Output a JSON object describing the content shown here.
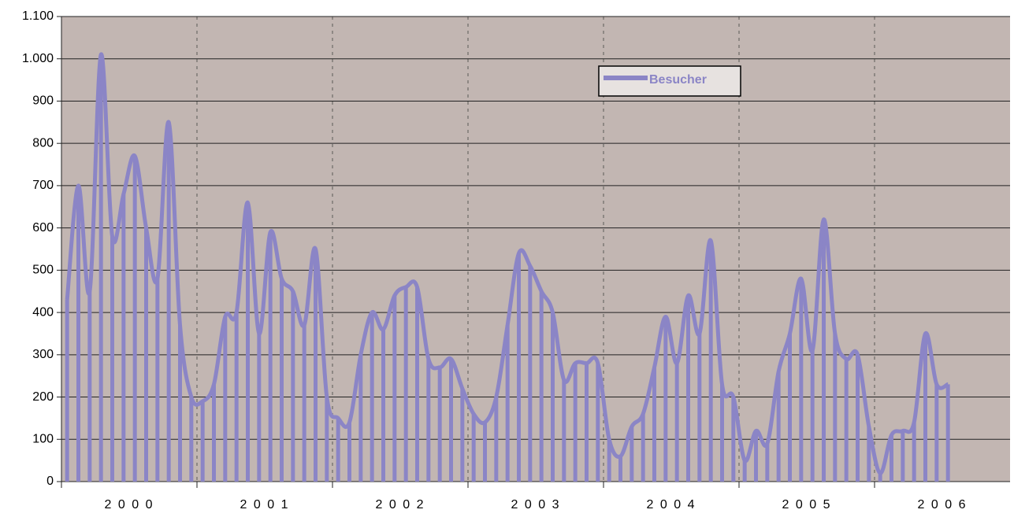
{
  "chart_data": {
    "type": "line",
    "xtick_labels": [
      "2 0 0 0",
      "2 0 0 1",
      "2 0 0 2",
      "2 0 0 3",
      "2 0 0 4",
      "2 0 0 5",
      "2 0 0 6"
    ],
    "series": [
      {
        "name": "Besucher",
        "color": "#8b85c6",
        "values": [
          430,
          700,
          450,
          1010,
          580,
          680,
          770,
          600,
          480,
          850,
          370,
          200,
          190,
          230,
          390,
          400,
          660,
          350,
          590,
          480,
          450,
          370,
          550,
          200,
          150,
          140,
          300,
          400,
          360,
          440,
          460,
          460,
          290,
          270,
          290,
          220,
          160,
          140,
          200,
          370,
          540,
          510,
          450,
          400,
          240,
          280,
          280,
          280,
          100,
          60,
          130,
          160,
          270,
          390,
          280,
          440,
          350,
          570,
          230,
          200,
          50,
          120,
          90,
          260,
          350,
          480,
          310,
          620,
          350,
          290,
          300,
          130,
          20,
          110,
          120,
          140,
          350,
          230,
          230
        ]
      }
    ],
    "ylim": [
      0,
      1100
    ],
    "yticks": [
      0,
      100,
      200,
      300,
      400,
      500,
      600,
      700,
      800,
      900,
      {
        "value": 1000,
        "label": "1.000"
      },
      {
        "value": 1100,
        "label": "1.100"
      }
    ],
    "grid": true,
    "legend": "top-right"
  }
}
